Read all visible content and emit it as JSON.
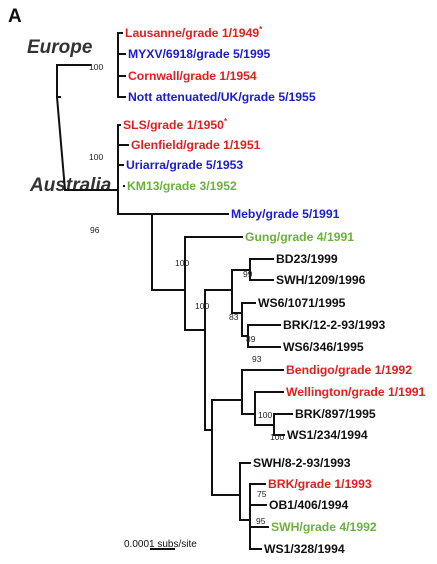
{
  "figure": {
    "panel_label": "A",
    "regions": {
      "europe": "Europe",
      "australia": "Australia"
    },
    "scale_bar": {
      "label": "0.0001 subs/site"
    }
  },
  "colors": {
    "grade1": "#e02020",
    "grade5": "#1c1cd0",
    "grade3_4": "#6ab23c",
    "field_isolate": "#111111"
  },
  "leaves": [
    {
      "label": "Lausanne/grade 1/1949",
      "marker": "*",
      "color": "#e02020"
    },
    {
      "label": "MYXV/6918/grade 5/1995",
      "color": "#1c1cd0"
    },
    {
      "label": "Cornwall/grade 1/1954",
      "color": "#e02020"
    },
    {
      "label": "Nott attenuated/UK/grade 5/1955",
      "color": "#1c1cd0"
    },
    {
      "label": "SLS/grade 1/1950",
      "marker": "*",
      "color": "#e02020"
    },
    {
      "label": "Glenfield/grade 1/1951",
      "color": "#e02020"
    },
    {
      "label": "Uriarra/grade 5/1953",
      "color": "#1c1cd0"
    },
    {
      "label": "KM13/grade 3/1952",
      "color": "#6ab23c"
    },
    {
      "label": "Meby/grade 5/1991",
      "color": "#1c1cd0"
    },
    {
      "label": "Gung/grade 4/1991",
      "color": "#6ab23c"
    },
    {
      "label": "BD23/1999",
      "color": "#111111"
    },
    {
      "label": "SWH/1209/1996",
      "color": "#111111"
    },
    {
      "label": "WS6/1071/1995",
      "color": "#111111"
    },
    {
      "label": "BRK/12-2-93/1993",
      "color": "#111111"
    },
    {
      "label": "WS6/346/1995",
      "color": "#111111"
    },
    {
      "label": "Bendigo/grade 1/1992",
      "color": "#e02020"
    },
    {
      "label": "Wellington/grade 1/1991",
      "color": "#e02020"
    },
    {
      "label": "BRK/897/1995",
      "color": "#111111"
    },
    {
      "label": "WS1/234/1994",
      "color": "#111111"
    },
    {
      "label": "SWH/8-2-93/1993",
      "color": "#111111"
    },
    {
      "label": "BRK/grade 1/1993",
      "color": "#e02020"
    },
    {
      "label": "OB1/406/1994",
      "color": "#111111"
    },
    {
      "label": "SWH/grade 4/1992",
      "color": "#6ab23c"
    },
    {
      "label": "WS1/328/1994",
      "color": "#111111"
    }
  ],
  "support_values": [
    "100",
    "100",
    "96",
    "100",
    "100",
    "99",
    "83",
    "89",
    "93",
    "100",
    "100",
    "75",
    "95"
  ]
}
